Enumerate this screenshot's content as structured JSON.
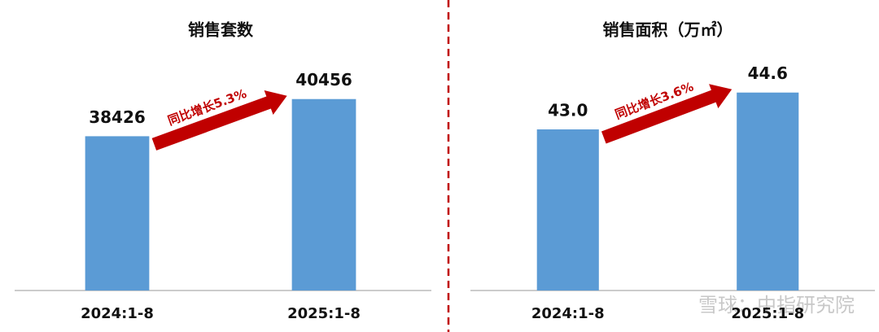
{
  "chart_data": [
    {
      "type": "bar",
      "title": "销售套数",
      "categories": [
        "2024:1-8",
        "2025:1-8"
      ],
      "values": [
        38426,
        40456
      ],
      "color": "#5b9bd5",
      "ylim": [
        30000,
        43200
      ],
      "annotation": "同比增长5.3%"
    },
    {
      "type": "bar",
      "title": "销售面积（万㎡）",
      "categories": [
        "2024:1-8",
        "2025:1-8"
      ],
      "values": [
        43.0,
        44.6
      ],
      "value_labels": [
        "43.0",
        "44.6"
      ],
      "color": "#5b9bd5",
      "ylim": [
        36,
        46.5
      ],
      "annotation": "同比增长3.6%"
    }
  ],
  "watermark": "雪球：中指研究院"
}
